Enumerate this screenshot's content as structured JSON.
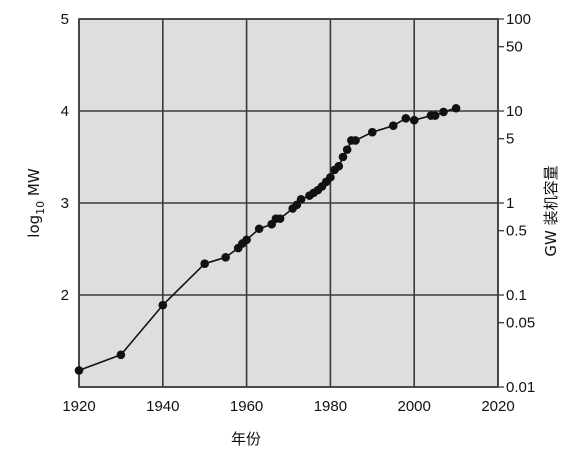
{
  "chart_data": {
    "type": "line",
    "title": "",
    "xlabel": "年份",
    "ylabel": "log10 MW",
    "ylabel_parts": {
      "base": "log",
      "sub": "10",
      "unit": " MW"
    },
    "y2label": "GW 装机容量",
    "xlim": [
      1920,
      2020
    ],
    "ylim": [
      1,
      5
    ],
    "grid": true,
    "legend": "none",
    "x_ticks": [
      "1920",
      "1940",
      "1960",
      "1980",
      "2000",
      "2020"
    ],
    "y_ticks": [
      "2",
      "3",
      "4",
      "5"
    ],
    "y2_ticks": [
      {
        "label": "100",
        "log10mw": 5
      },
      {
        "label": "50",
        "log10mw": 4.699
      },
      {
        "label": "10",
        "log10mw": 4
      },
      {
        "label": "5",
        "log10mw": 3.699
      },
      {
        "label": "1",
        "log10mw": 3
      },
      {
        "label": "0.5",
        "log10mw": 2.699
      },
      {
        "label": "0.1",
        "log10mw": 2
      },
      {
        "label": "0.05",
        "log10mw": 1.699
      },
      {
        "label": "0.01",
        "log10mw": 1
      }
    ],
    "series": [
      {
        "x": [
          1920,
          1930,
          1940,
          1950,
          1955,
          1958,
          1959,
          1960,
          1963,
          1966,
          1967,
          1968,
          1971,
          1972,
          1973,
          1975,
          1976,
          1977,
          1978,
          1979,
          1980,
          1981,
          1982,
          1983,
          1984,
          1985,
          1986,
          1990,
          1995,
          1998,
          2000,
          2004,
          2005,
          2007,
          2010
        ],
        "y": [
          1.18,
          1.35,
          1.89,
          2.34,
          2.41,
          2.51,
          2.56,
          2.6,
          2.72,
          2.77,
          2.83,
          2.83,
          2.94,
          2.98,
          3.04,
          3.08,
          3.11,
          3.14,
          3.18,
          3.23,
          3.28,
          3.36,
          3.4,
          3.5,
          3.58,
          3.68,
          3.68,
          3.77,
          3.84,
          3.92,
          3.9,
          3.95,
          3.95,
          3.99,
          4.03
        ]
      }
    ]
  },
  "colors": {
    "plot_bg": "#dedede",
    "grid": "#3a3a3a",
    "line": "#111111",
    "point": "#111111"
  }
}
